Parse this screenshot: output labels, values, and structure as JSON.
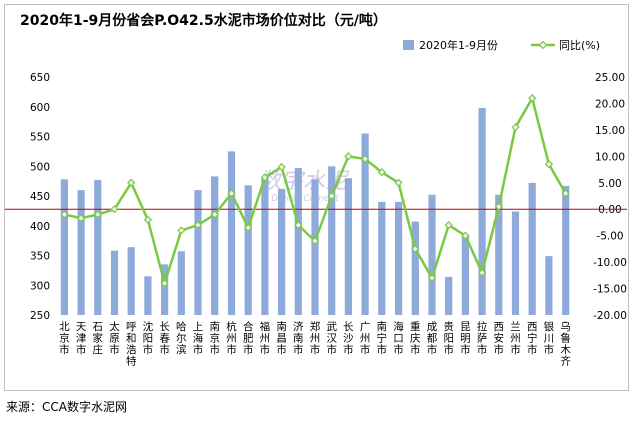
{
  "title": "2020年1-9月份省会P.O42.5水泥市场价位对比（元/吨）",
  "source": "来源：CCA数字水泥网",
  "watermark": {
    "main": "数字水泥",
    "sub": "Digital Cement",
    "color": "#c7b8e0"
  },
  "chart_data": {
    "type": "bar",
    "title": "2020年1-9月份省会P.O42.5水泥市场价位对比（元/吨）",
    "categories": [
      "北京市",
      "天津市",
      "石家庄",
      "太原市",
      "呼和浩特",
      "沈阳市",
      "长春市",
      "哈尔滨",
      "上海市",
      "南京市",
      "杭州市",
      "合肥市",
      "福州市",
      "南昌市",
      "济南市",
      "郑州市",
      "武汉市",
      "长沙市",
      "广州市",
      "南宁市",
      "海口市",
      "重庆市",
      "成都市",
      "贵阳市",
      "昆明市",
      "拉萨市",
      "西安市",
      "兰州市",
      "西宁市",
      "银川市",
      "乌鲁木齐"
    ],
    "yaxis_left": {
      "min": 250,
      "max": 650,
      "step": 50
    },
    "yaxis_right": {
      "min": -20,
      "max": 25,
      "step": 5,
      "tick_labels": [
        "-20.00",
        "-15.00",
        "-10.00",
        "-5.00",
        "0.00",
        "5.00",
        "10.00",
        "15.00",
        "20.00",
        "25.00"
      ]
    },
    "series": [
      {
        "name": "2020年1-9月份",
        "type": "bar",
        "axis": "left",
        "color": "#8eaadb",
        "values": [
          478,
          460,
          477,
          358,
          364,
          315,
          335,
          357,
          460,
          483,
          525,
          468,
          480,
          462,
          497,
          478,
          500,
          480,
          555,
          440,
          440,
          407,
          452,
          314,
          385,
          598,
          452,
          424,
          472,
          349,
          467
        ]
      },
      {
        "name": "同比(%)",
        "type": "line",
        "axis": "right",
        "color": "#7ac943",
        "marker_color": "#f2f2f2",
        "values": [
          -1.0,
          -1.7,
          -1.0,
          0.0,
          5.0,
          -2.0,
          -14.0,
          -4.0,
          -3.0,
          -1.0,
          3.0,
          -3.5,
          6.0,
          8.0,
          -3.0,
          -6.0,
          2.5,
          10.0,
          9.5,
          7.0,
          5.0,
          -7.5,
          -13.0,
          -3.0,
          -5.0,
          -12.0,
          0.5,
          15.5,
          21.0,
          8.5,
          3.0
        ]
      }
    ],
    "reference_line": {
      "axis": "right",
      "value": 0,
      "color": "#c00000"
    },
    "legend": {
      "position": "top-right"
    },
    "grid": false
  }
}
